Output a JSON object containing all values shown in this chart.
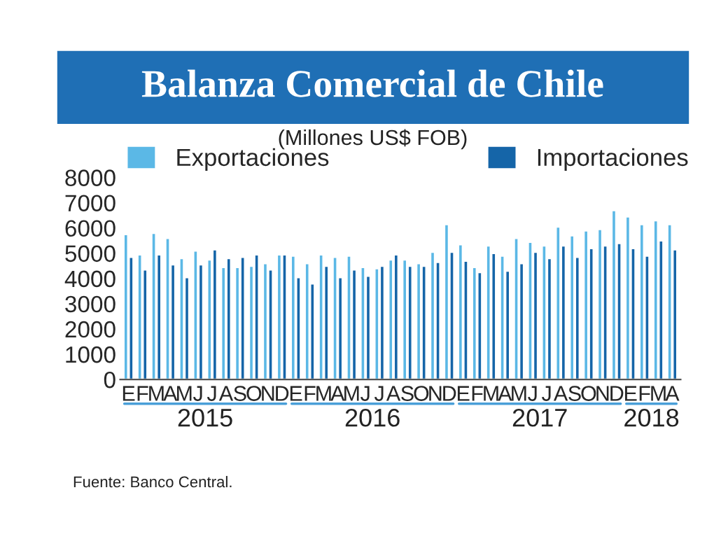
{
  "chart_data": {
    "type": "bar",
    "title": "Balanza Comercial de Chile",
    "subtitle": "(Millones US$ FOB)",
    "categories": [
      "E",
      "F",
      "M",
      "A",
      "M",
      "J",
      "J",
      "A",
      "S",
      "O",
      "N",
      "D",
      "E",
      "F",
      "M",
      "A",
      "M",
      "J",
      "J",
      "A",
      "S",
      "O",
      "N",
      "D",
      "E",
      "F",
      "M",
      "A",
      "M",
      "J",
      "J",
      "A",
      "S",
      "O",
      "N",
      "D",
      "E",
      "F",
      "M",
      "A"
    ],
    "series": [
      {
        "name": "Exportaciones",
        "color": "#5bb8e6",
        "values": [
          5750,
          4950,
          5800,
          5600,
          4800,
          5100,
          4750,
          4450,
          4450,
          4500,
          4600,
          4950,
          4900,
          4600,
          4950,
          4850,
          4900,
          4450,
          4400,
          4750,
          4750,
          4600,
          5050,
          6150,
          5350,
          4450,
          5300,
          4900,
          5600,
          5450,
          5300,
          6050,
          5700,
          5900,
          5950,
          6700,
          6450,
          6150,
          6300,
          6150
        ]
      },
      {
        "name": "Importaciones",
        "color": "#1565a8",
        "values": [
          4850,
          4350,
          4950,
          4550,
          4050,
          4550,
          5150,
          4800,
          4850,
          4950,
          4350,
          4950,
          4050,
          3800,
          4500,
          4050,
          4350,
          4100,
          4500,
          4950,
          4500,
          4500,
          4650,
          5050,
          4700,
          4250,
          5000,
          4300,
          4600,
          5050,
          4800,
          5300,
          4850,
          5200,
          5300,
          5400,
          5200,
          4900,
          5500,
          5150
        ]
      }
    ],
    "ylim": [
      0,
      8000
    ],
    "yticks": [
      0,
      1000,
      2000,
      3000,
      4000,
      5000,
      6000,
      7000,
      8000
    ],
    "grid": false,
    "legend": "top",
    "annotations": [
      "2015",
      "2016",
      "2017",
      "2018",
      "Fuente: Banco Central."
    ]
  }
}
